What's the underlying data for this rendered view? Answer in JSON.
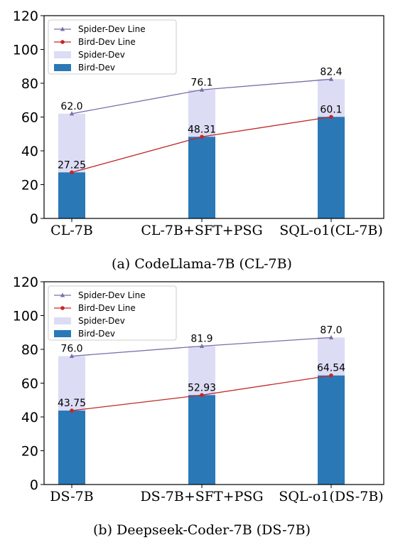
{
  "colors": {
    "spider_bar": "#dcdcf5",
    "bird_bar": "#2a78b6",
    "spider_line": "#7a6fa8",
    "bird_line": "#c0292b"
  },
  "chart_data": [
    {
      "type": "bar",
      "caption": "(a) CodeLlama-7B (CL-7B)",
      "categories": [
        "CL-7B",
        "CL-7B+SFT+PSG",
        "SQL-o1(CL-7B)"
      ],
      "series": [
        {
          "name": "Spider-Dev",
          "kind": "bar",
          "values": [
            62.0,
            76.1,
            82.4
          ],
          "labels": [
            "62.0",
            "76.1",
            "82.4"
          ]
        },
        {
          "name": "Bird-Dev",
          "kind": "bar",
          "values": [
            27.25,
            48.31,
            60.1
          ],
          "labels": [
            "27.25",
            "48.31",
            "60.1"
          ]
        },
        {
          "name": "Spider-Dev Line",
          "kind": "line",
          "values": [
            62.0,
            76.1,
            82.4
          ]
        },
        {
          "name": "Bird-Dev Line",
          "kind": "line",
          "values": [
            27.25,
            48.31,
            60.1
          ]
        }
      ],
      "legend": [
        "Spider-Dev Line",
        "Bird-Dev Line",
        "Spider-Dev",
        "Bird-Dev"
      ],
      "legend_position": "top-left",
      "ylim": [
        0,
        120
      ],
      "yticks": [
        "0",
        "20",
        "40",
        "60",
        "80",
        "100",
        "120"
      ],
      "grid": false
    },
    {
      "type": "bar",
      "caption": "(b) Deepseek-Coder-7B (DS-7B)",
      "categories": [
        "DS-7B",
        "DS-7B+SFT+PSG",
        "SQL-o1(DS-7B)"
      ],
      "series": [
        {
          "name": "Spider-Dev",
          "kind": "bar",
          "values": [
            76.0,
            81.9,
            87.0
          ],
          "labels": [
            "76.0",
            "81.9",
            "87.0"
          ]
        },
        {
          "name": "Bird-Dev",
          "kind": "bar",
          "values": [
            43.75,
            52.93,
            64.54
          ],
          "labels": [
            "43.75",
            "52.93",
            "64.54"
          ]
        },
        {
          "name": "Spider-Dev Line",
          "kind": "line",
          "values": [
            76.0,
            81.9,
            87.0
          ]
        },
        {
          "name": "Bird-Dev Line",
          "kind": "line",
          "values": [
            43.75,
            52.93,
            64.54
          ]
        }
      ],
      "legend": [
        "Spider-Dev Line",
        "Bird-Dev Line",
        "Spider-Dev",
        "Bird-Dev"
      ],
      "legend_position": "top-left",
      "ylim": [
        0,
        120
      ],
      "yticks": [
        "0",
        "20",
        "40",
        "60",
        "80",
        "100",
        "120"
      ],
      "grid": false
    }
  ]
}
